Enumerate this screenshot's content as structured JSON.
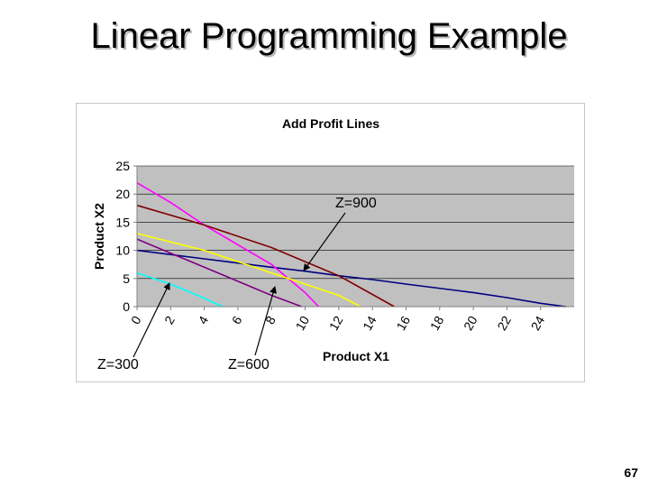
{
  "slide": {
    "title": "Linear Programming Example",
    "page_number": "67"
  },
  "chart_data": {
    "type": "line",
    "title": "Add Profit Lines",
    "xlabel": "Product X1",
    "ylabel": "Product X2",
    "xlim": [
      0,
      26
    ],
    "ylim": [
      0,
      25
    ],
    "x_ticks": [
      "0",
      "2",
      "4",
      "6",
      "8",
      "10",
      "12",
      "14",
      "16",
      "18",
      "20",
      "22",
      "24"
    ],
    "y_ticks": [
      "0",
      "5",
      "10",
      "15",
      "20",
      "25"
    ],
    "grid": true,
    "plot_background": "#c0c0c0",
    "series": [
      {
        "color": "#000080",
        "x": [
          0,
          4,
          8,
          10,
          12,
          14,
          16,
          20,
          22,
          24,
          25.5
        ],
        "y": [
          10,
          8.5,
          7,
          6.3,
          5.5,
          4.8,
          4,
          2.5,
          1.6,
          0.6,
          0
        ]
      },
      {
        "color": "#ff00ff",
        "x": [
          0,
          2,
          4,
          6,
          8,
          10,
          10.8
        ],
        "y": [
          22,
          18.5,
          14.5,
          11,
          7.5,
          2.5,
          0
        ]
      },
      {
        "color": "#800000",
        "x": [
          0,
          4,
          8,
          10,
          12,
          15.3
        ],
        "y": [
          18,
          14.5,
          10.5,
          8,
          5.5,
          0
        ]
      },
      {
        "color": "#ffff00",
        "x": [
          0,
          4,
          8,
          10,
          12,
          13.3
        ],
        "y": [
          13,
          10,
          6,
          4,
          2,
          0
        ]
      },
      {
        "color": "#800080",
        "x": [
          0,
          2,
          4,
          6,
          8,
          9.8
        ],
        "y": [
          12,
          9.5,
          7,
          4.5,
          2,
          0
        ]
      },
      {
        "color": "#00ffff",
        "x": [
          0,
          2,
          4,
          5.1
        ],
        "y": [
          6,
          4,
          1.5,
          0
        ]
      }
    ],
    "annotations": [
      {
        "text": "Z=900"
      },
      {
        "text": "Z=300"
      },
      {
        "text": "Z=600"
      }
    ]
  }
}
